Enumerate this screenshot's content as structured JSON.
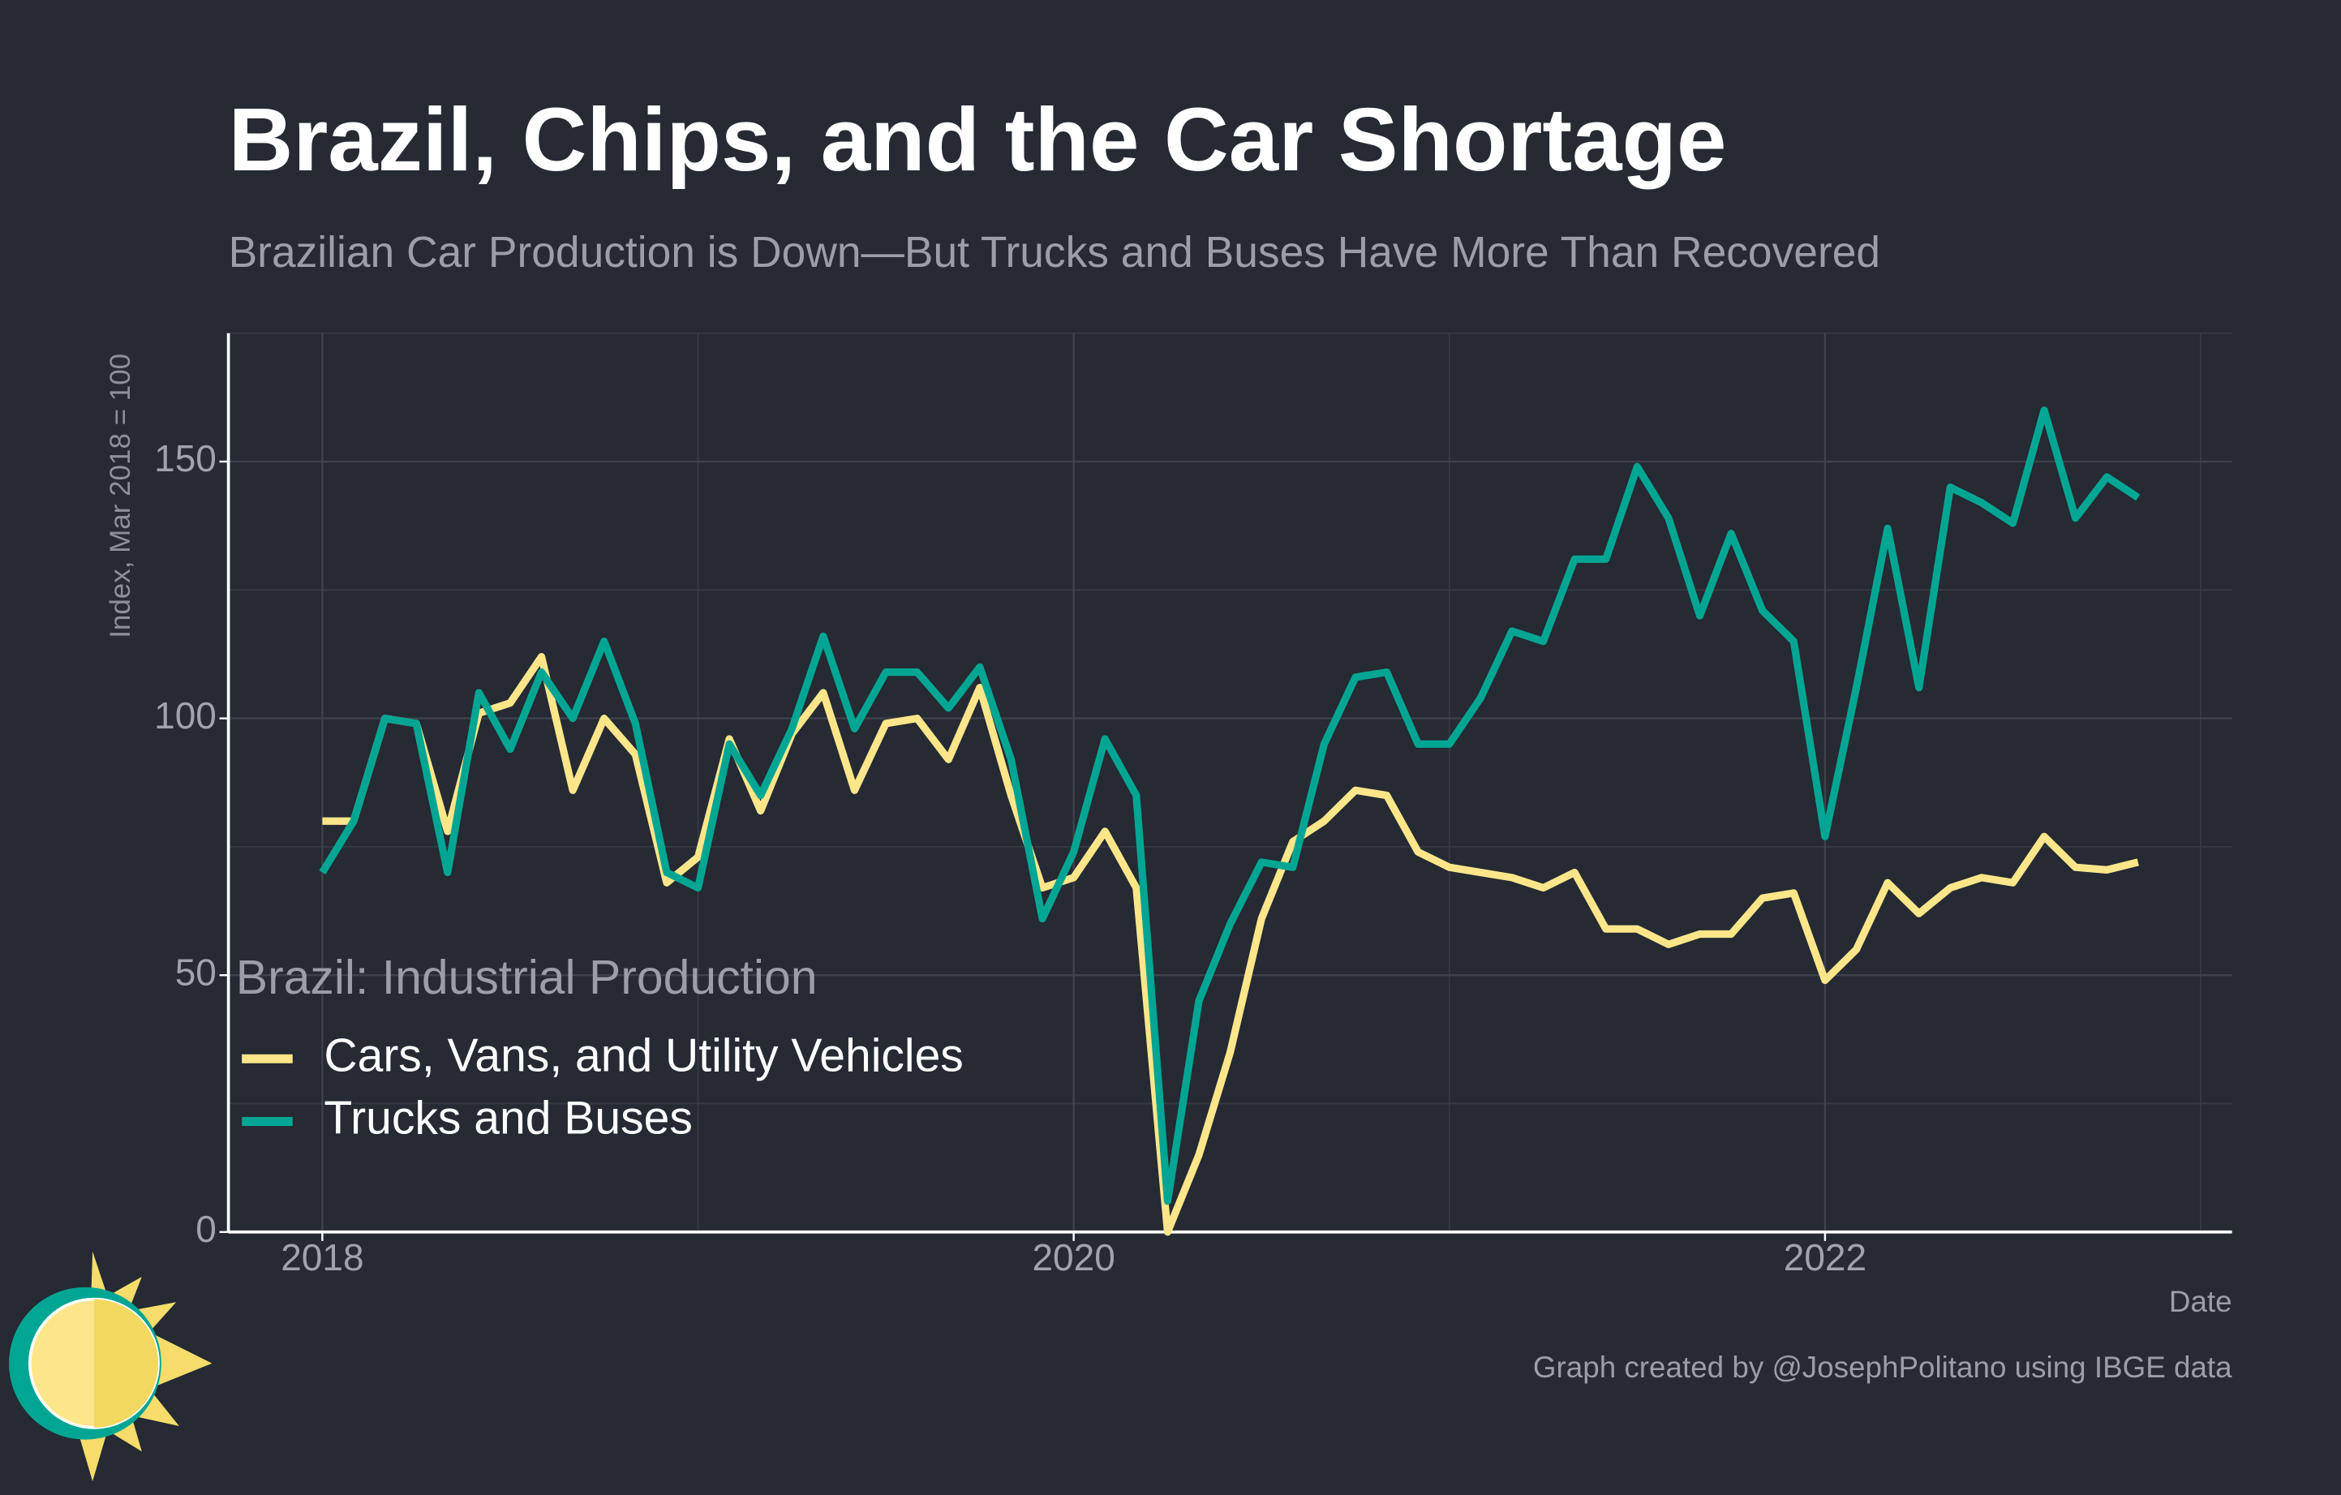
{
  "chart_data": {
    "type": "line",
    "title": "Brazil, Chips, and the Car Shortage",
    "subtitle": "Brazilian Car Production is Down—But Trucks and Buses Have More Than Recovered",
    "ylabel": "Index, Mar 2018 = 100",
    "xlabel": "Date",
    "credit": "Graph created by @JosephPolitano using IBGE data",
    "legend_title": "Brazil: Industrial Production",
    "legend": "lower left",
    "grid": true,
    "x": [
      "2018-01",
      "2018-02",
      "2018-03",
      "2018-04",
      "2018-05",
      "2018-06",
      "2018-07",
      "2018-08",
      "2018-09",
      "2018-10",
      "2018-11",
      "2018-12",
      "2019-01",
      "2019-02",
      "2019-03",
      "2019-04",
      "2019-05",
      "2019-06",
      "2019-07",
      "2019-08",
      "2019-09",
      "2019-10",
      "2019-11",
      "2019-12",
      "2020-01",
      "2020-02",
      "2020-03",
      "2020-04",
      "2020-05",
      "2020-06",
      "2020-07",
      "2020-08",
      "2020-09",
      "2020-10",
      "2020-11",
      "2020-12",
      "2021-01",
      "2021-02",
      "2021-03",
      "2021-04",
      "2021-05",
      "2021-06",
      "2021-07",
      "2021-08",
      "2021-09",
      "2021-10",
      "2021-11",
      "2021-12",
      "2022-01",
      "2022-02",
      "2022-03",
      "2022-04",
      "2022-05",
      "2022-06",
      "2022-07",
      "2022-08",
      "2022-09",
      "2022-10",
      "2022-11"
    ],
    "series": [
      {
        "name": "Cars, Vans, and Utility Vehicles",
        "color": "#fde68a",
        "values": [
          80,
          80,
          100,
          99,
          78,
          101,
          103,
          112,
          86,
          100,
          93,
          68,
          73,
          96,
          82,
          97,
          105,
          86,
          99,
          100,
          92,
          106,
          85,
          67,
          69,
          78,
          67,
          0,
          15,
          35,
          61,
          76,
          80,
          86,
          85,
          74,
          71,
          70,
          69,
          67,
          70,
          59,
          59,
          56,
          58,
          58,
          65,
          66,
          49,
          55,
          68,
          62,
          67,
          69,
          68,
          77,
          71,
          70.5,
          72
        ]
      },
      {
        "name": "Trucks and Buses",
        "color": "#00a693",
        "values": [
          70,
          80,
          100,
          99,
          70,
          105,
          94,
          109,
          100,
          115,
          99,
          70,
          67,
          95,
          85,
          98,
          116,
          98,
          109,
          109,
          102,
          110,
          92,
          61,
          74,
          96,
          85,
          6,
          45,
          60,
          72,
          71,
          95,
          108,
          109,
          95,
          95,
          104,
          117,
          115,
          131,
          131,
          149,
          139,
          120,
          136,
          121,
          115,
          77,
          106,
          137,
          106,
          145,
          142,
          138,
          160,
          139,
          147,
          143
        ]
      }
    ],
    "xlim": [
      "2017-10",
      "2023-02"
    ],
    "xticks": [
      2018,
      2020,
      2022
    ],
    "xminor": [
      2019,
      2021,
      2023
    ],
    "ylim": [
      0,
      175
    ],
    "yticks": [
      0,
      50,
      100,
      150
    ],
    "yminor": [
      25,
      75,
      125,
      175
    ]
  }
}
